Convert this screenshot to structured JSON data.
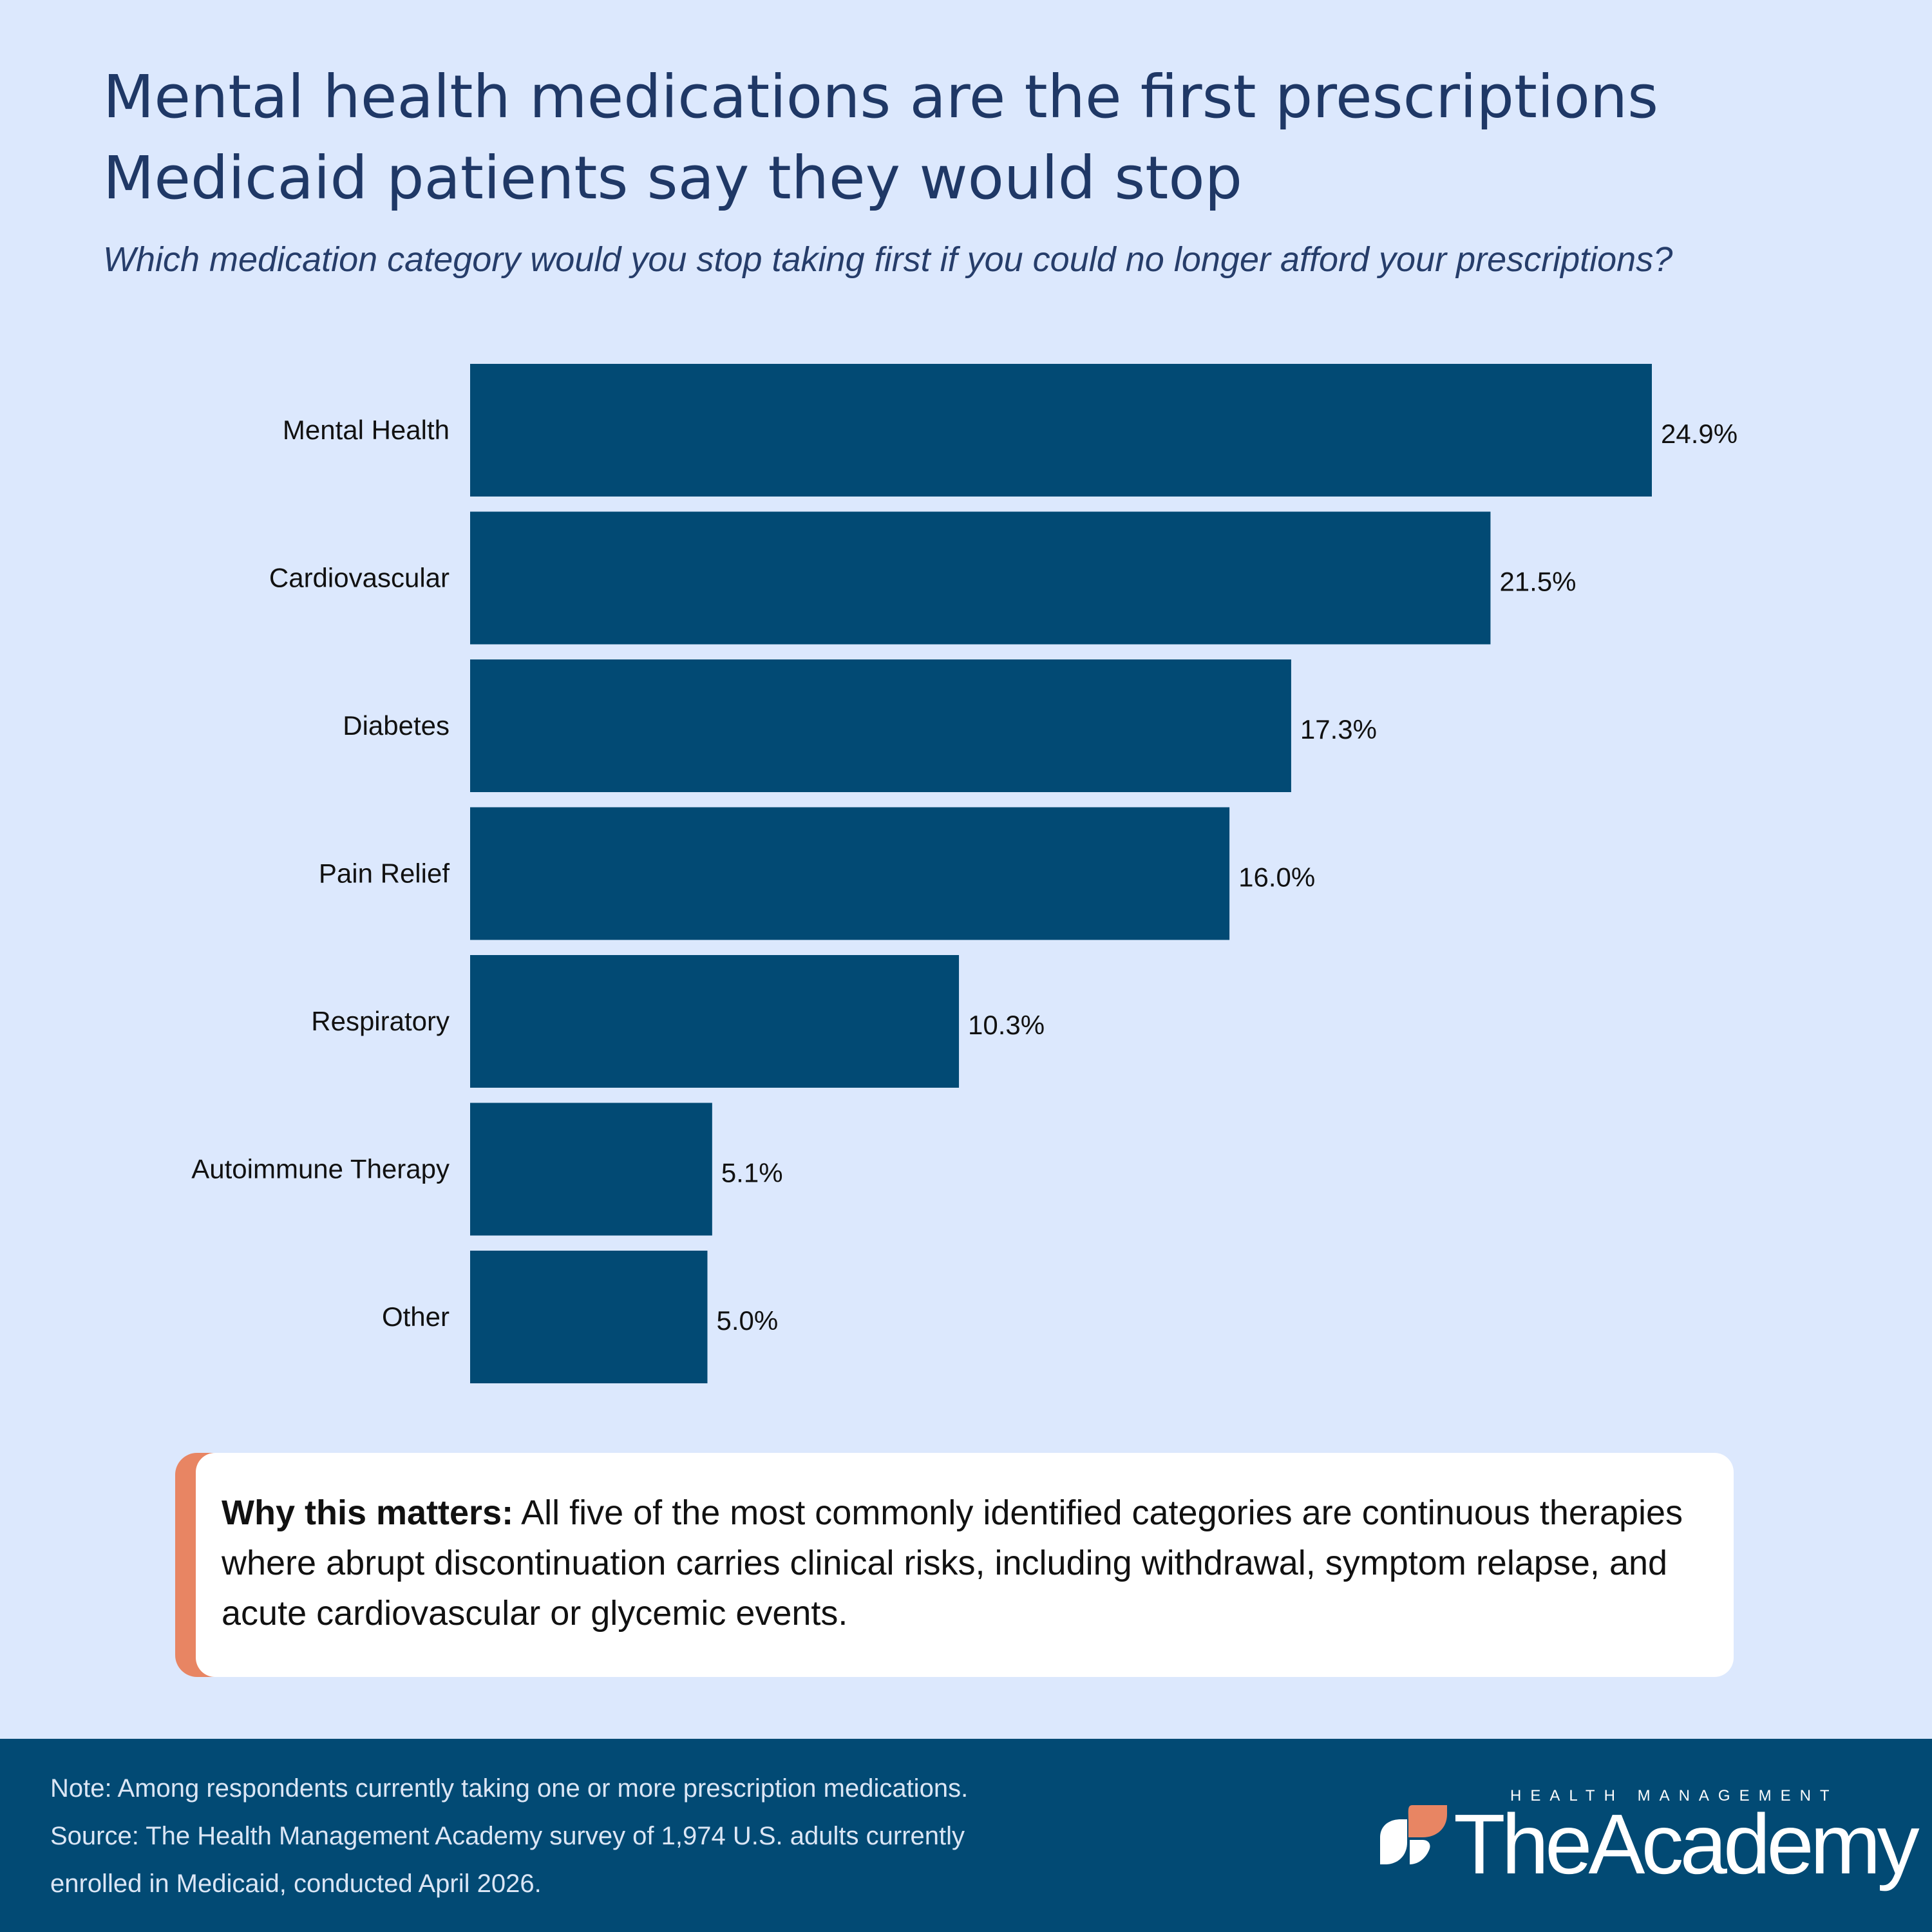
{
  "header": {
    "title_line1": "Mental health medications are the first prescriptions",
    "title_line2": "Medicaid patients say they would stop",
    "subtitle": "Which medication category would you stop taking first if you could no longer afford your prescriptions?"
  },
  "chart_data": {
    "type": "bar",
    "orientation": "horizontal",
    "categories": [
      "Mental Health",
      "Cardiovascular",
      "Diabetes",
      "Pain Relief",
      "Respiratory",
      "Autoimmune Therapy",
      "Other"
    ],
    "values": [
      24.9,
      21.5,
      17.3,
      16.0,
      10.3,
      5.1,
      5.0
    ],
    "value_labels": [
      "24.9%",
      "21.5%",
      "17.3%",
      "16.0%",
      "10.3%",
      "5.1%",
      "5.0%"
    ],
    "unit": "%",
    "xlim": [
      0,
      24.9
    ],
    "grid": false,
    "legend": "none",
    "bar_color": "#024a74"
  },
  "callout": {
    "lead": "Why this matters:",
    "text": " All five of the most commonly identified categories are continuous therapies where abrupt discontinuation carries clinical risks, including withdrawal, symptom relapse, and acute cardiovascular or glycemic events.",
    "accent_color": "#e88563"
  },
  "footer": {
    "note_line1": "Note: Among respondents currently taking one or more prescription medications.",
    "note_line2": "Source: The Health Management Academy survey of 1,974 U.S. adults currently",
    "note_line3": "enrolled in Medicaid, conducted April 2026.",
    "logo_subtitle": "HEALTH MANAGEMENT",
    "logo_name": "TheAcademy"
  },
  "colors": {
    "background": "#dce8fd",
    "title": "#1f3866",
    "footer_bg": "#024a74"
  }
}
